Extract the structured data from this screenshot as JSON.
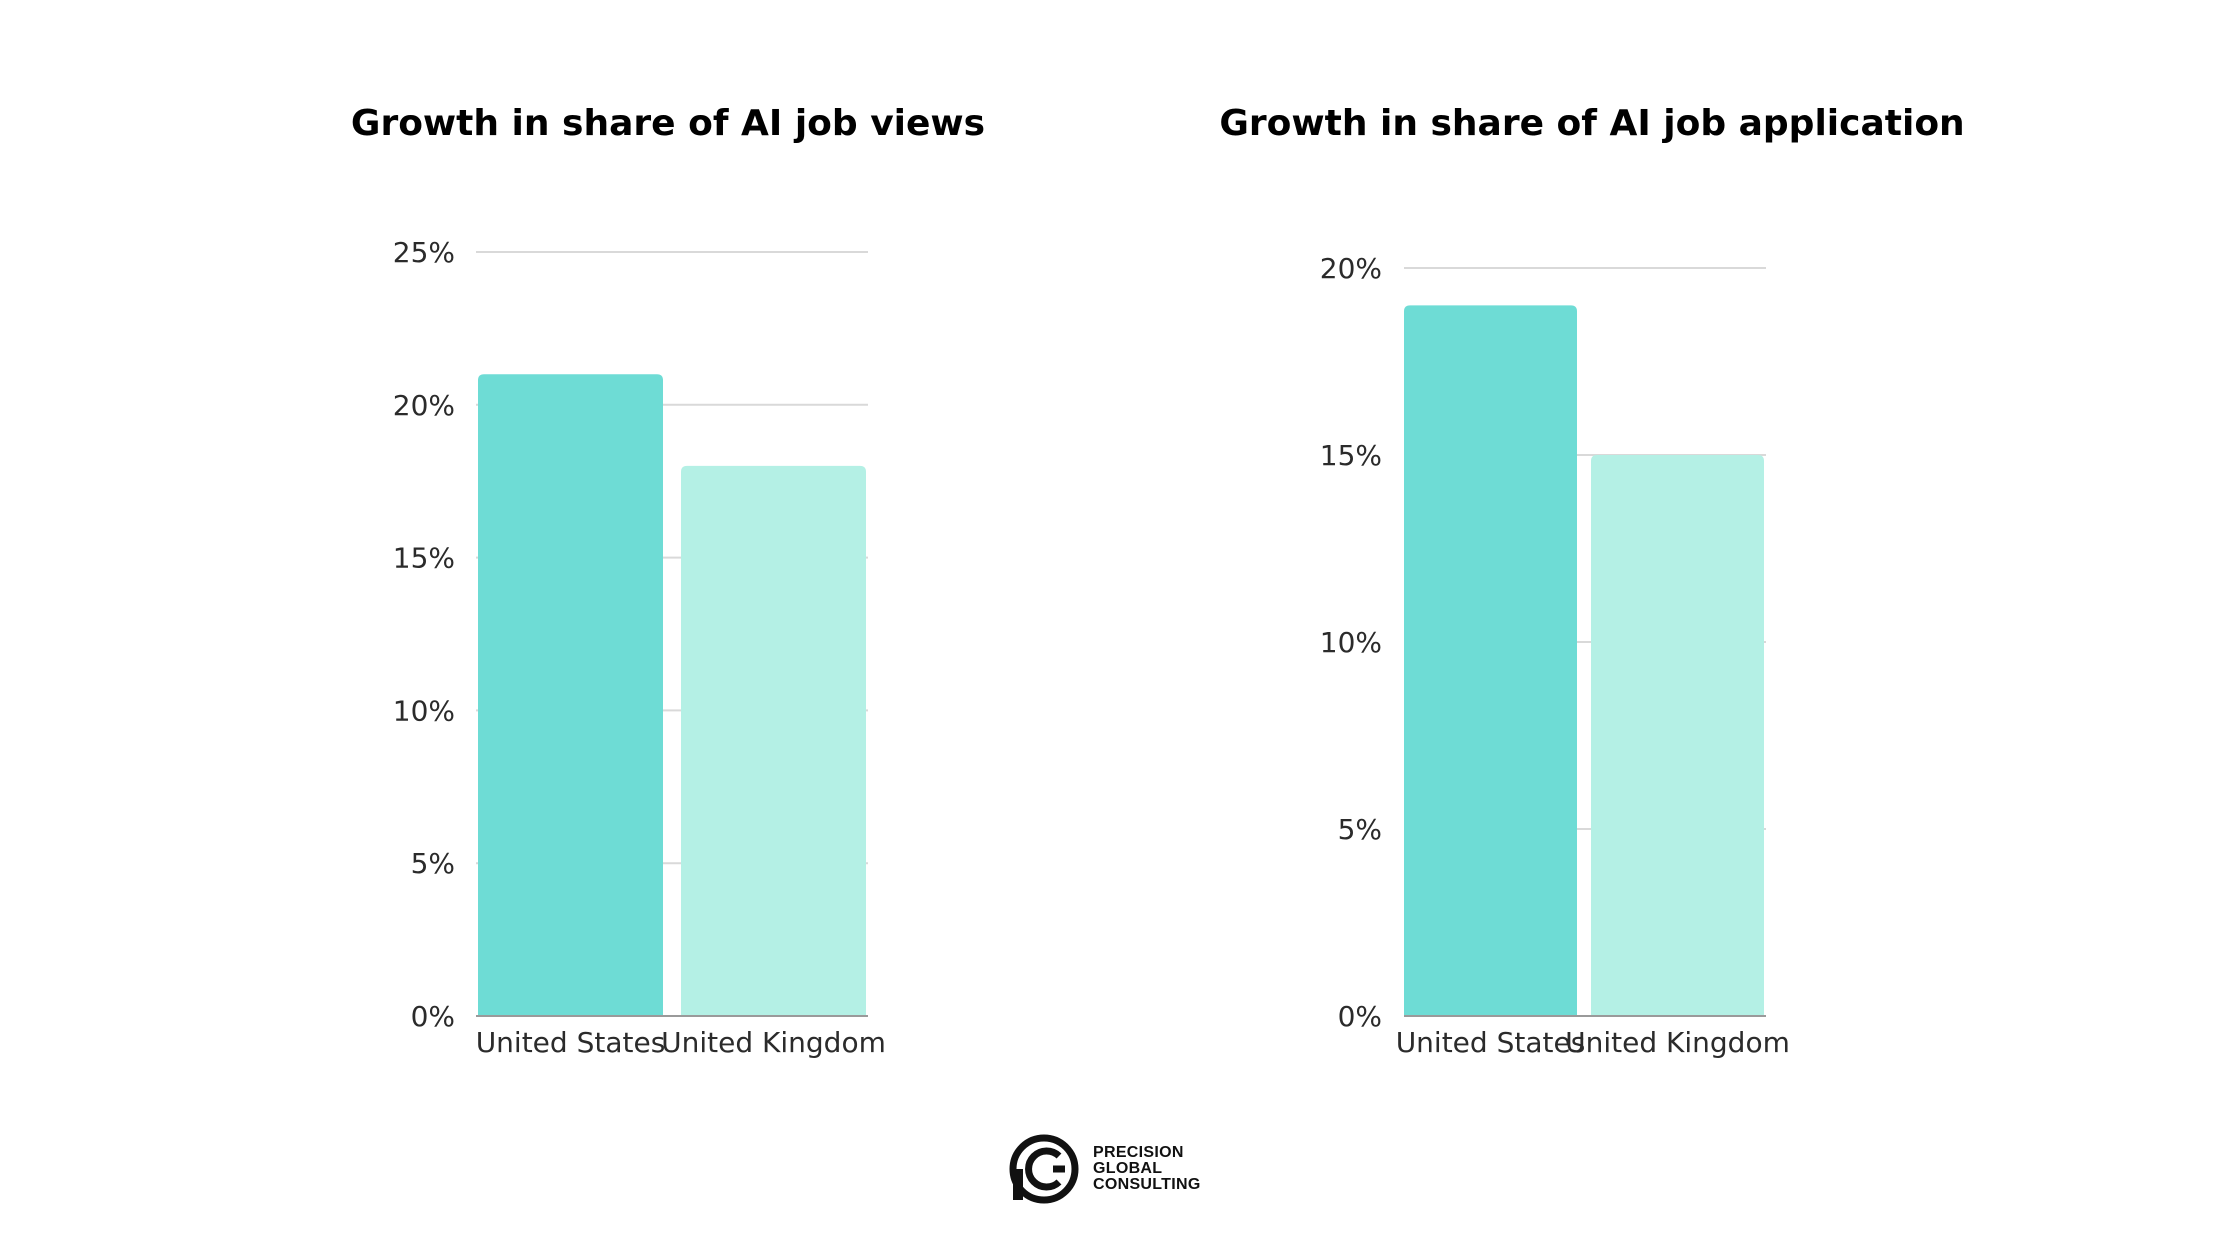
{
  "colors": {
    "us_bar": "#6edcd5",
    "uk_bar": "#b4f0e5",
    "grid": "#d9d9d9",
    "text": "#2b2b2b"
  },
  "chart_data": [
    {
      "type": "bar",
      "title": "Growth in share of AI job views",
      "categories": [
        "United States",
        "United Kingdom"
      ],
      "values": [
        21,
        18
      ],
      "ylim": [
        0,
        25
      ],
      "yticks": [
        0,
        5,
        10,
        15,
        20,
        25
      ],
      "ytick_labels": [
        "0%",
        "5%",
        "10%",
        "15%",
        "20%",
        "25%"
      ],
      "xlabel": "",
      "ylabel": "",
      "grid": true,
      "legend": "none"
    },
    {
      "type": "bar",
      "title": "Growth in share of AI job application",
      "categories": [
        "United States",
        "United Kingdom"
      ],
      "values": [
        19,
        15
      ],
      "ylim": [
        0,
        20
      ],
      "yticks": [
        0,
        5,
        10,
        15,
        20
      ],
      "ytick_labels": [
        "0%",
        "5%",
        "10%",
        "15%",
        "20%"
      ],
      "xlabel": "",
      "ylabel": "",
      "grid": true,
      "legend": "none"
    }
  ],
  "logo": {
    "icon": "precision-global-consulting-logo-icon",
    "line1": "PRECISION",
    "line2": "GLOBAL",
    "line3": "CONSULTING"
  }
}
